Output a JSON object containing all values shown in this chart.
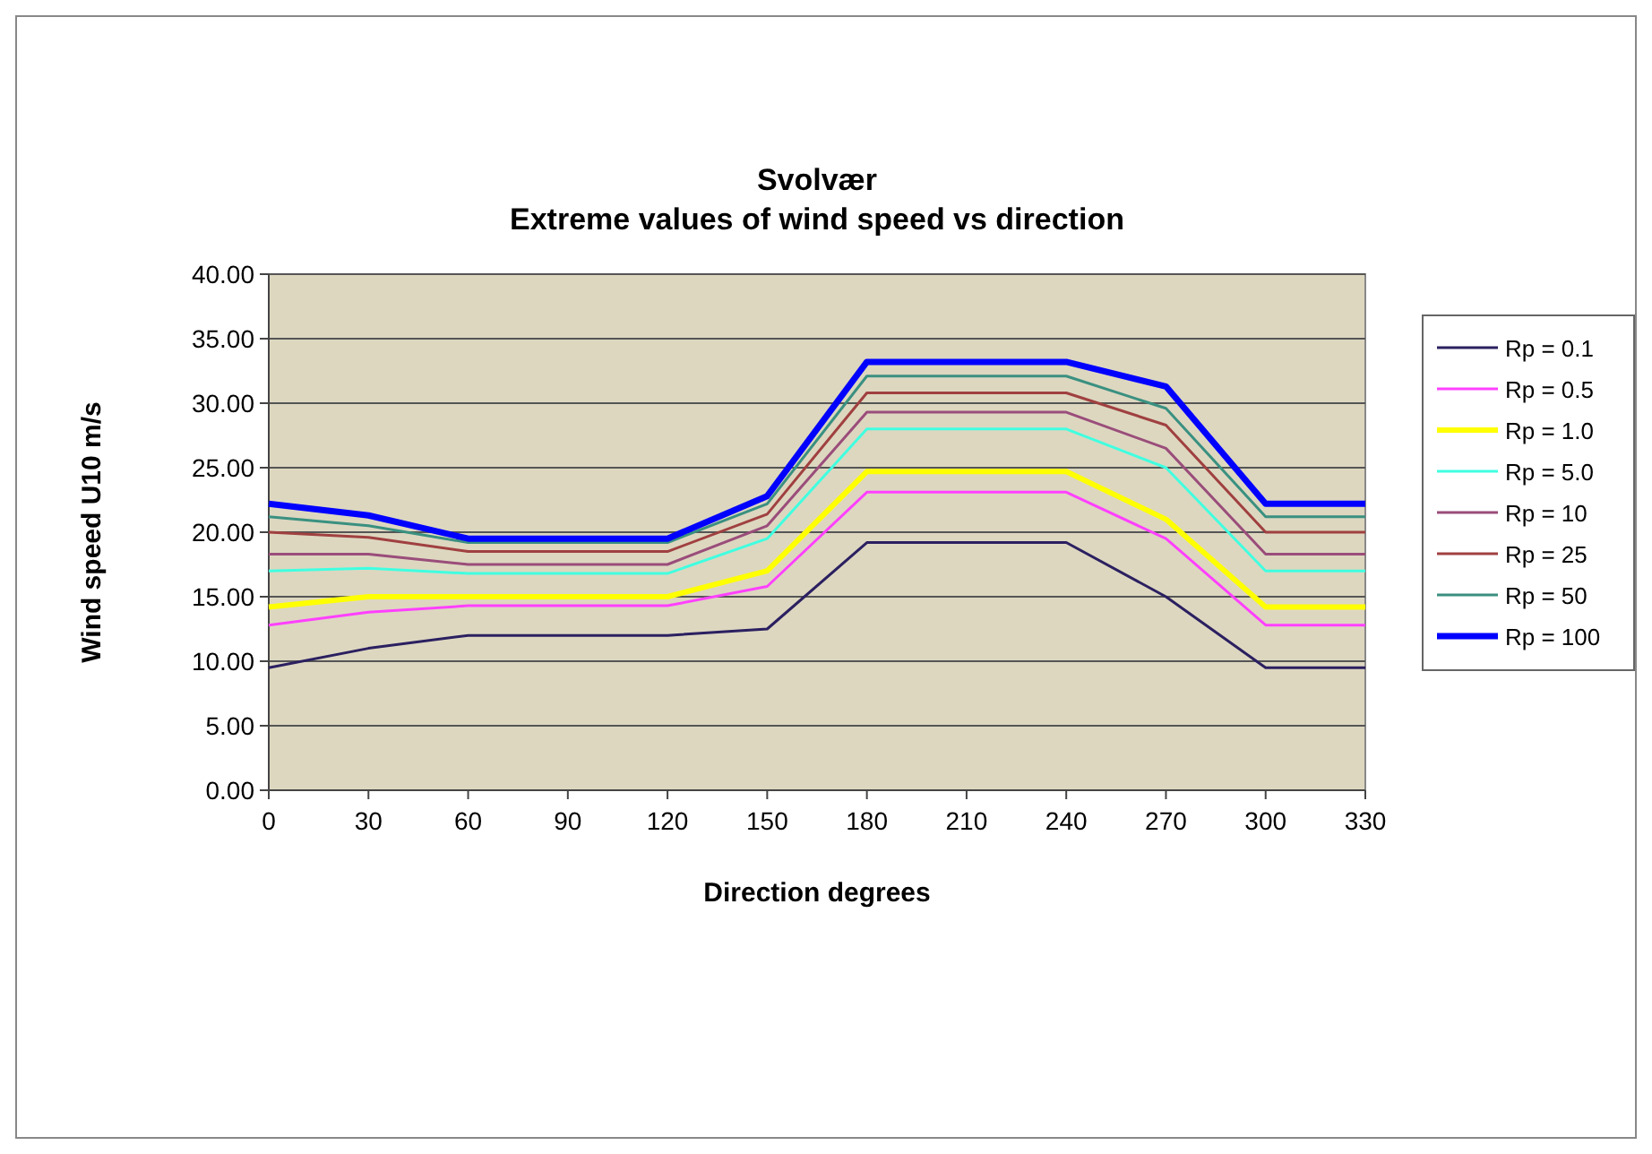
{
  "chart_data": {
    "type": "line",
    "title": "Svolvær",
    "subtitle": "Extreme values of wind speed vs direction",
    "xlabel": "Direction  degrees",
    "ylabel": "Wind speed U10 m/s",
    "categories": [
      "0",
      "30",
      "60",
      "90",
      "120",
      "150",
      "180",
      "210",
      "240",
      "270",
      "300",
      "330"
    ],
    "ylim": [
      0,
      40
    ],
    "yticks": [
      {
        "value": 0,
        "label": "0.00"
      },
      {
        "value": 5,
        "label": "5.00"
      },
      {
        "value": 10,
        "label": "10.00"
      },
      {
        "value": 15,
        "label": "15.00"
      },
      {
        "value": 20,
        "label": "20.00"
      },
      {
        "value": 25,
        "label": "25.00"
      },
      {
        "value": 30,
        "label": "30.00"
      },
      {
        "value": 35,
        "label": "35.00"
      },
      {
        "value": 40,
        "label": "40.00"
      }
    ],
    "grid": "y",
    "legend": "right",
    "marker": "none",
    "line_style": "solid",
    "series": [
      {
        "name": "Rp = 0.1",
        "color": "#2b2060",
        "values": [
          9.5,
          11,
          12,
          12,
          12,
          12.5,
          19.2,
          19.2,
          19.2,
          15,
          9.5,
          9.5
        ]
      },
      {
        "name": "Rp = 0.5",
        "color": "#ff40ff",
        "values": [
          12.8,
          13.8,
          14.3,
          14.3,
          14.3,
          15.8,
          23.1,
          23.1,
          23.1,
          19.5,
          12.8,
          12.8
        ]
      },
      {
        "name": "Rp = 1.0",
        "color": "#ffff00",
        "values": [
          14.2,
          15,
          15,
          15,
          15,
          17,
          24.7,
          24.7,
          24.7,
          21,
          14.2,
          14.2
        ]
      },
      {
        "name": "Rp = 5.0",
        "color": "#40ffe0",
        "values": [
          17,
          17.2,
          16.8,
          16.8,
          16.8,
          19.5,
          28,
          28,
          28,
          25,
          17,
          17
        ]
      },
      {
        "name": "Rp = 10",
        "color": "#9a4d7a",
        "values": [
          18.3,
          18.3,
          17.5,
          17.5,
          17.5,
          20.5,
          29.3,
          29.3,
          29.3,
          26.5,
          18.3,
          18.3
        ]
      },
      {
        "name": "Rp = 25",
        "color": "#a04040",
        "values": [
          20,
          19.6,
          18.5,
          18.5,
          18.5,
          21.4,
          30.8,
          30.8,
          30.8,
          28.3,
          20,
          20
        ]
      },
      {
        "name": "Rp = 50",
        "color": "#3a9080",
        "values": [
          21.2,
          20.5,
          19.2,
          19.2,
          19.2,
          22.2,
          32.1,
          32.1,
          32.1,
          29.6,
          21.2,
          21.2
        ]
      },
      {
        "name": "Rp = 100",
        "color": "#0000ff",
        "values": [
          22.2,
          21.3,
          19.5,
          19.5,
          19.5,
          22.8,
          33.2,
          33.2,
          33.2,
          31.3,
          22.2,
          22.2
        ]
      }
    ]
  }
}
